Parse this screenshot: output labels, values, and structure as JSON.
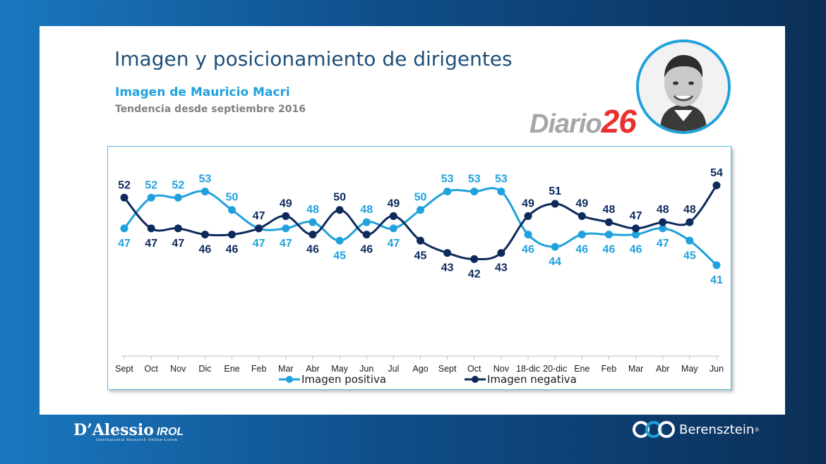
{
  "slide": {
    "title": "Imagen y posicionamiento de dirigentes",
    "subtitle": "Imagen de Mauricio Macri",
    "subsubtitle": "Tendencia desde septiembre 2016"
  },
  "watermark": {
    "part1": "Diario",
    "part2": "26"
  },
  "footer": {
    "left_brand": "D’Alessio",
    "left_brand_sub": "IROL",
    "left_tagline": "International Research Online-Lorem",
    "right_brand": "Berensztein",
    "right_reg": "®"
  },
  "colors": {
    "positive": "#1fa1dc",
    "negative": "#0d2a5c",
    "title": "#1f4e79"
  },
  "chart_data": {
    "type": "line",
    "categories": [
      "Sept",
      "Oct",
      "Nov",
      "Dic",
      "Ene",
      "Feb",
      "Mar",
      "Abr",
      "May",
      "Jun",
      "Jul",
      "Ago",
      "Sept",
      "Oct",
      "Nov",
      "18-dic",
      "20-dic",
      "Ene",
      "Feb",
      "Mar",
      "Abr",
      "May",
      "Jun"
    ],
    "series": [
      {
        "name": "Imagen positiva",
        "values": [
          47,
          52,
          52,
          53,
          50,
          47,
          47,
          48,
          45,
          48,
          47,
          50,
          53,
          53,
          53,
          46,
          44,
          46,
          46,
          46,
          47,
          45,
          41
        ]
      },
      {
        "name": "Imagen negativa",
        "values": [
          52,
          47,
          47,
          46,
          46,
          47,
          49,
          46,
          50,
          46,
          49,
          45,
          43,
          42,
          43,
          49,
          51,
          49,
          48,
          47,
          48,
          48,
          54
        ]
      }
    ],
    "ylim": [
      30,
      58
    ],
    "grid": false,
    "legend": "bottom",
    "data_labels": true
  }
}
